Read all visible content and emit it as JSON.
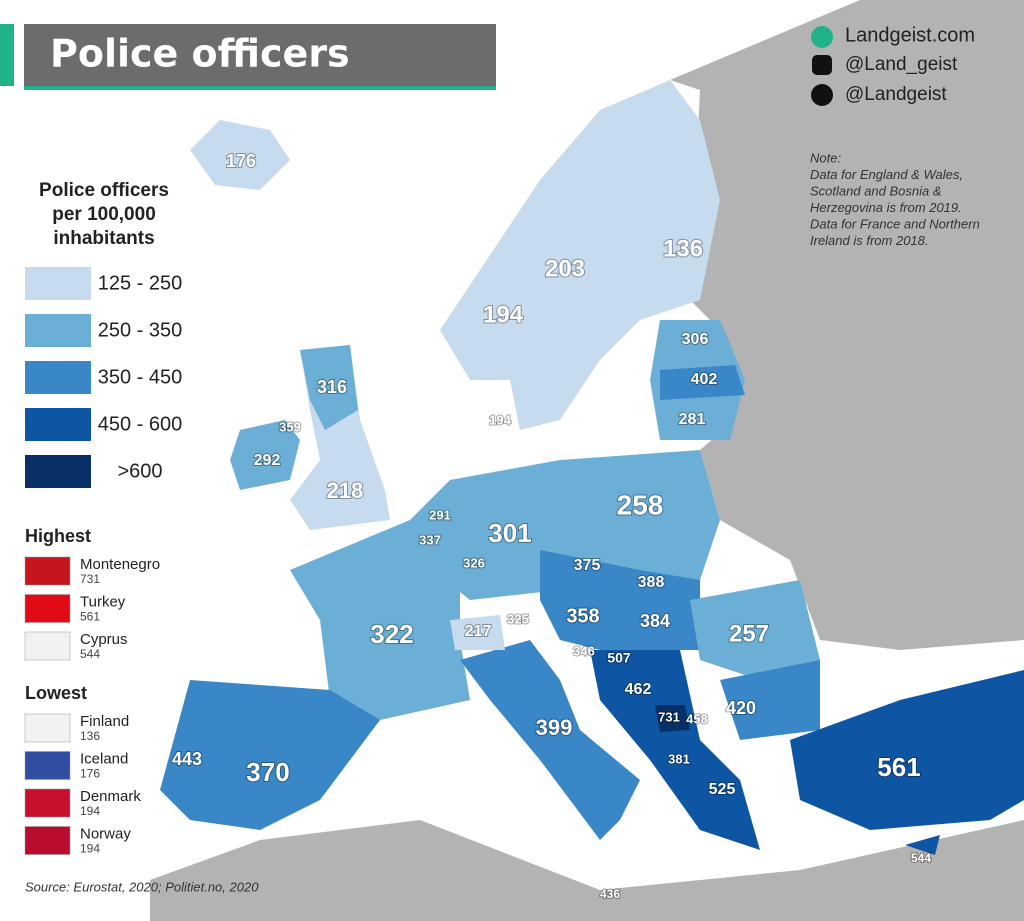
{
  "header": {
    "title": "Police officers"
  },
  "social": [
    "Landgeist.com",
    "@Land_geist",
    "@Landgeist"
  ],
  "note": [
    "Note:",
    "Data for England & Wales,",
    "Scotland and Bosnia &",
    "Herzegovina is from 2019.",
    "Data for France and Northern",
    "Ireland is from 2018."
  ],
  "legend": {
    "title": [
      "Police officers",
      "per 100,000",
      "inhabitants"
    ],
    "items": [
      {
        "label": "125 - 250",
        "color": "#c6dbee"
      },
      {
        "label": "250 - 350",
        "color": "#6baed6"
      },
      {
        "label": "350 - 450",
        "color": "#3a87c7"
      },
      {
        "label": "450 - 600",
        "color": "#0e56a4"
      },
      {
        "label": ">600",
        "color": "#082f66"
      }
    ]
  },
  "highest": {
    "title": "Highest",
    "items": [
      {
        "name": "Montenegro",
        "value": 731
      },
      {
        "name": "Turkey",
        "value": 561
      },
      {
        "name": "Cyprus",
        "value": 544
      }
    ]
  },
  "lowest": {
    "title": "Lowest",
    "items": [
      {
        "name": "Finland",
        "value": 136
      },
      {
        "name": "Iceland",
        "value": 176
      },
      {
        "name": "Denmark",
        "value": 194
      },
      {
        "name": "Norway",
        "value": 194
      }
    ]
  },
  "source": "Source: Eurostat, 2020; Politiet.no, 2020",
  "map_labels": [
    176,
    136,
    203,
    194,
    306,
    402,
    281,
    316,
    359,
    292,
    218,
    194,
    291,
    337,
    326,
    301,
    258,
    375,
    388,
    358,
    384,
    257,
    217,
    325,
    322,
    346,
    507,
    462,
    731,
    458,
    420,
    399,
    381,
    525,
    561,
    544,
    436,
    443,
    370
  ]
}
